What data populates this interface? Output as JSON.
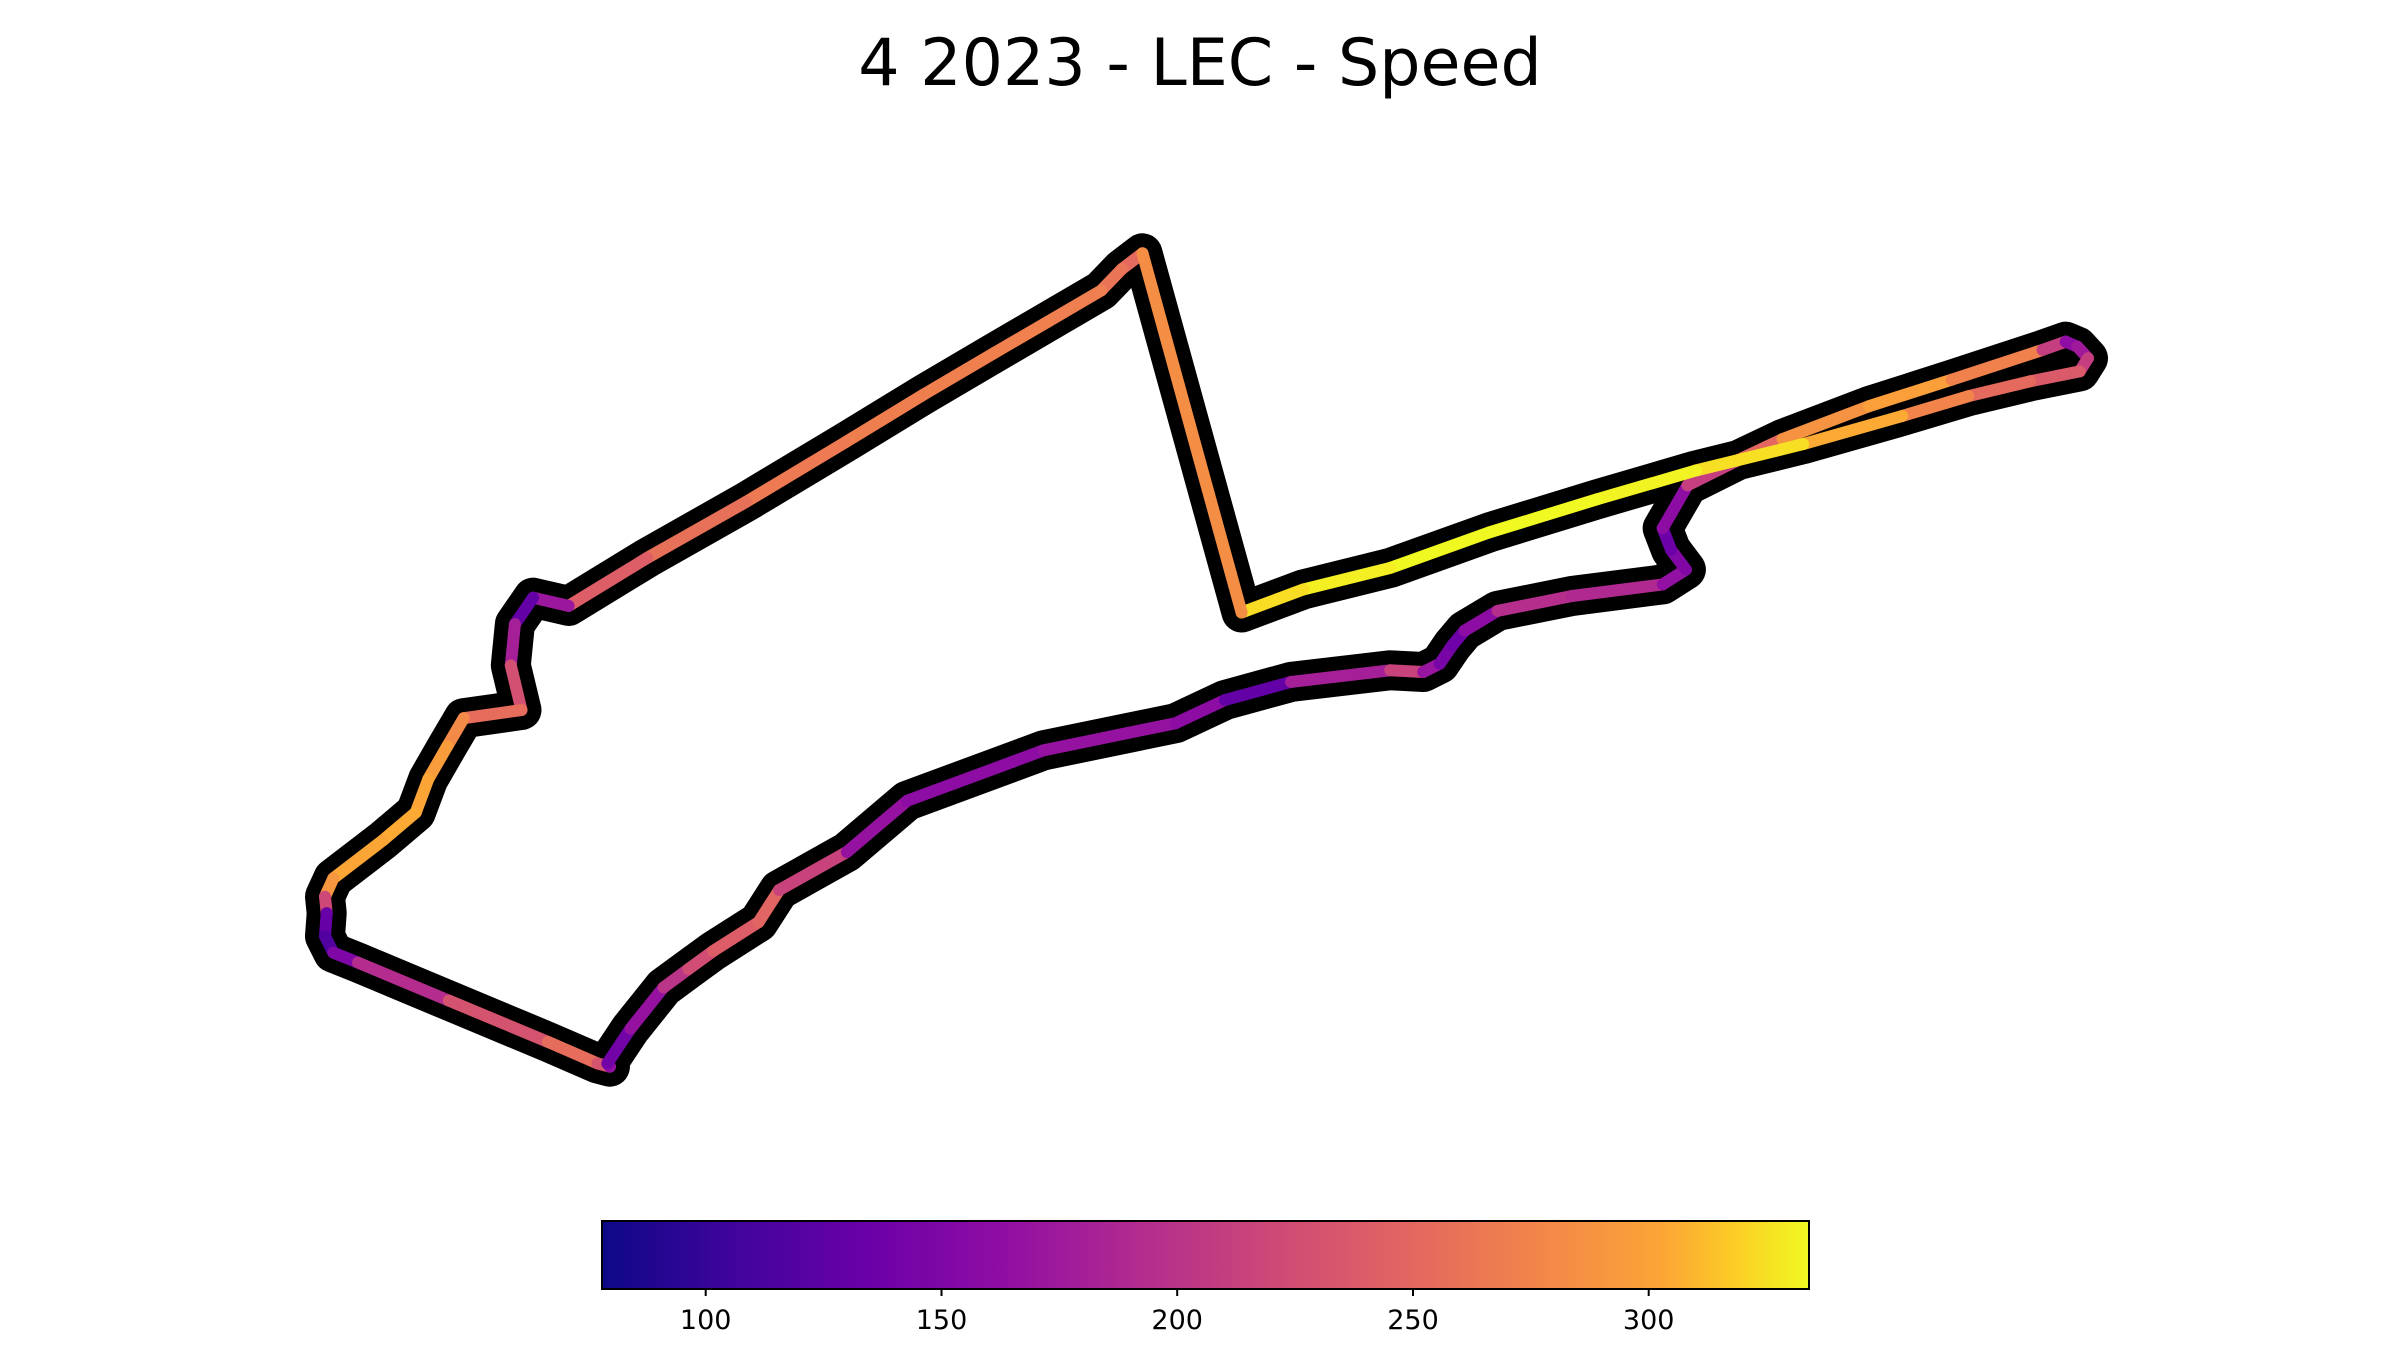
{
  "chart_data": {
    "type": "line",
    "title": "4 2023 - LEC - Speed",
    "colormap": "plasma",
    "colorbar": {
      "range": [
        78,
        334
      ],
      "ticks": [
        100,
        150,
        200,
        250,
        300
      ],
      "tick_labels": [
        "100",
        "150",
        "200",
        "250",
        "300"
      ],
      "orientation": "horizontal",
      "placement": "bottom"
    },
    "track_outline_color": "#000000",
    "grid": false,
    "axes_visible": false,
    "x": [
      1000,
      975,
      950,
      885,
      820,
      735,
      640,
      520,
      400,
      305,
      262,
      240,
      235,
      248,
      178,
      158,
      135,
      120,
      80,
      20,
      10,
      12,
      10,
      20,
      50,
      160,
      280,
      340,
      355,
      352,
      380,
      420,
      450,
      480,
      535,
      560,
      642,
      715,
      880,
      1040,
      1100,
      1180,
      1300,
      1340,
      1360,
      1375,
      1390,
      1430,
      1520,
      1630,
      1658,
      1640,
      1630,
      1660,
      1720,
      1775,
      1880,
      1980,
      2090,
      2118,
      2132,
      2145,
      2135,
      2075,
      2000,
      1920,
      1800,
      1670,
      1550,
      1420,
      1300,
      1195,
      1120
    ],
    "y": [
      255,
      274,
      300,
      338,
      376,
      426,
      484,
      556,
      624,
      682,
      672,
      704,
      754,
      808,
      818,
      852,
      892,
      932,
      966,
      1012,
      1034,
      1054,
      1082,
      1102,
      1114,
      1160,
      1210,
      1236,
      1240,
      1236,
      1194,
      1144,
      1122,
      1100,
      1065,
      1026,
      980,
      918,
      857,
      824,
      796,
      774,
      760,
      762,
      752,
      730,
      712,
      688,
      670,
      656,
      638,
      614,
      588,
      536,
      506,
      480,
      440,
      408,
      372,
      362,
      368,
      382,
      398,
      410,
      428,
      452,
      486,
      518,
      553,
      593,
      636,
      662,
      690
    ],
    "speed": [
      247,
      257,
      267,
      272,
      272,
      270,
      270,
      263,
      252,
      230,
      115,
      145,
      215,
      240,
      270,
      290,
      300,
      305,
      305,
      300,
      280,
      160,
      105,
      130,
      170,
      215,
      245,
      265,
      195,
      130,
      150,
      185,
      215,
      235,
      245,
      250,
      180,
      155,
      165,
      170,
      150,
      110,
      250,
      180,
      160,
      130,
      145,
      175,
      215,
      165,
      165,
      140,
      130,
      190,
      230,
      270,
      305,
      290,
      255,
      165,
      160,
      190,
      230,
      245,
      260,
      290,
      320,
      330,
      334,
      334,
      333,
      328,
      320
    ]
  }
}
